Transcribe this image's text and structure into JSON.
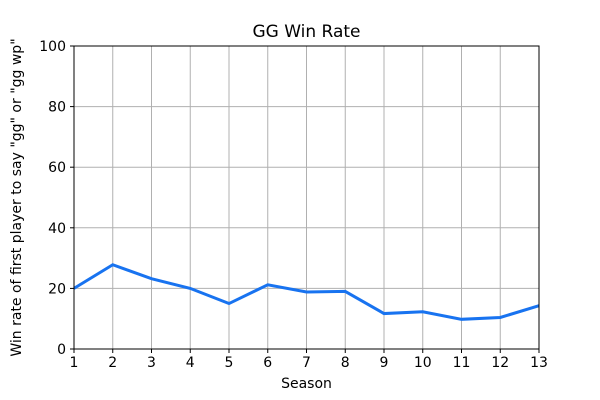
{
  "chart_data": {
    "type": "line",
    "title": "GG Win Rate",
    "xlabel": "Season",
    "ylabel": "Win rate of first player to say \"gg\" or \"gg wp\"",
    "x": [
      1,
      2,
      3,
      4,
      5,
      6,
      7,
      8,
      9,
      10,
      11,
      12,
      13
    ],
    "series": [
      {
        "name": "win-rate",
        "values": [
          20,
          27.8,
          23.2,
          20,
          15,
          21.2,
          18.8,
          19,
          11.7,
          12.3,
          9.8,
          10.4,
          14.3
        ]
      }
    ],
    "xlim": [
      1,
      13
    ],
    "ylim": [
      0,
      100
    ],
    "xticks": [
      1,
      2,
      3,
      4,
      5,
      6,
      7,
      8,
      9,
      10,
      11,
      12,
      13
    ],
    "yticks": [
      0,
      20,
      40,
      60,
      80,
      100
    ],
    "grid": true,
    "legend": "none",
    "colors": {
      "line": "#1873f0",
      "grid": "#b0b0b0",
      "spine": "#000000",
      "background": "#ffffff"
    }
  }
}
